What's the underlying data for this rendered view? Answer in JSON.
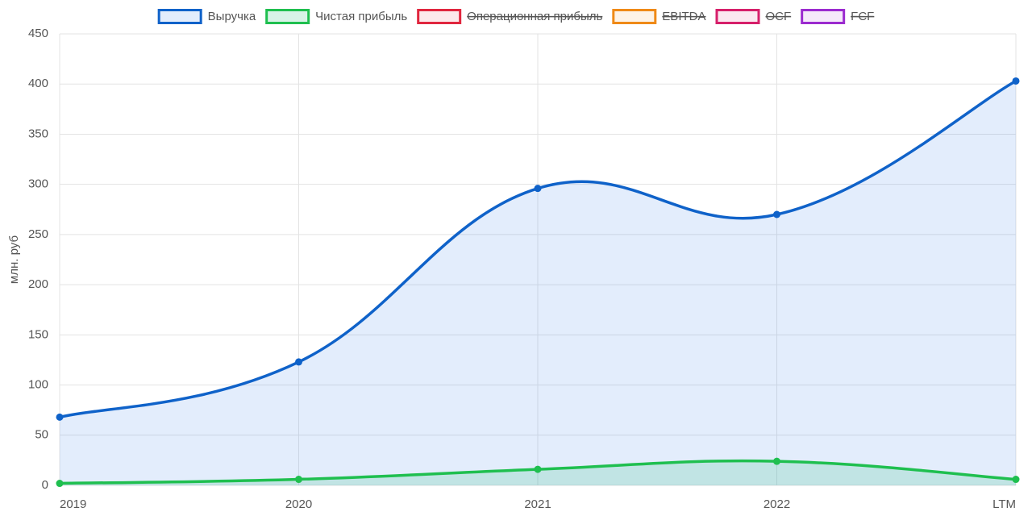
{
  "chart_data": {
    "type": "line",
    "y_label": "млн. руб",
    "categories": [
      "2019",
      "2020",
      "2021",
      "2022",
      "LTM"
    ],
    "series": [
      {
        "name": "Выручка",
        "color": "#0f62c9",
        "fill": "rgba(54,130,235,0.14)",
        "values": [
          68,
          123,
          296,
          270,
          403
        ]
      },
      {
        "name": "Чистая прибыль",
        "color": "#1fbf4f",
        "fill": "rgba(40,190,120,0.18)",
        "values": [
          2,
          6,
          16,
          24,
          6
        ]
      },
      {
        "name": "Операционная прибыль",
        "color": "#e0263e",
        "fill": "rgba(224,38,62,0.1)",
        "hidden": true,
        "values": [
          null,
          null,
          null,
          null,
          null
        ]
      },
      {
        "name": "EBITDA",
        "color": "#ef8a17",
        "fill": "rgba(239,138,23,0.1)",
        "hidden": true,
        "values": [
          null,
          null,
          null,
          null,
          null
        ]
      },
      {
        "name": "OCF",
        "color": "#d61f6a",
        "fill": "rgba(214,31,106,0.1)",
        "hidden": true,
        "values": [
          null,
          null,
          null,
          null,
          null
        ]
      },
      {
        "name": "FCF",
        "color": "#9b2bcf",
        "fill": "rgba(155,43,207,0.1)",
        "hidden": true,
        "values": [
          null,
          null,
          null,
          null,
          null
        ]
      }
    ],
    "ylim": [
      0,
      450
    ],
    "yticks": [
      0,
      50,
      100,
      150,
      200,
      250,
      300,
      350,
      400,
      450
    ],
    "grid": true
  }
}
